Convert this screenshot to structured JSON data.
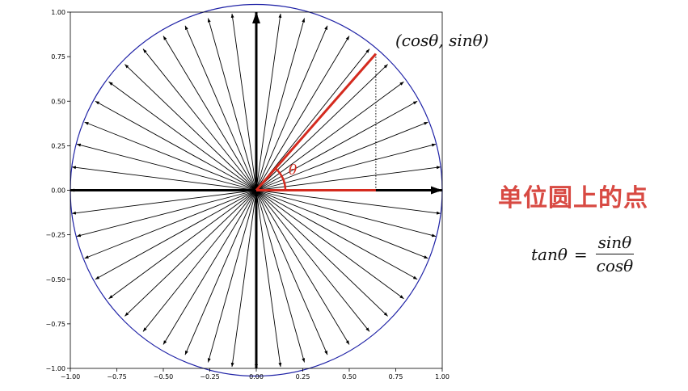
{
  "heading": "单位圆上的点",
  "formula": {
    "lhs": "tanθ",
    "equals": "=",
    "numerator": "sinθ",
    "denominator": "cosθ"
  },
  "colors": {
    "heading": "#d84a43",
    "circle": "#1f22a6",
    "highlight": "#d42a1e",
    "spokes": "#000000"
  },
  "chart_data": {
    "type": "line",
    "title": "",
    "xlabel": "",
    "ylabel": "",
    "xlim": [
      -1.0,
      1.0
    ],
    "ylim": [
      -1.0,
      1.0
    ],
    "xticks": [
      "−1.00",
      "−0.75",
      "−0.50",
      "−0.25",
      "0.00",
      "0.25",
      "0.50",
      "0.75",
      "1.00"
    ],
    "yticks": [
      "1.00",
      "0.75",
      "0.50",
      "0.25",
      "0.00",
      "−0.25",
      "−0.50",
      "−0.75",
      "−1.00"
    ],
    "tick_values": [
      -1.0,
      -0.75,
      -0.5,
      -0.25,
      0.0,
      0.25,
      0.5,
      0.75,
      1.0
    ],
    "grid": false,
    "unit_circle": {
      "center": [
        0,
        0
      ],
      "radius": 1.0
    },
    "spoke_count": 48,
    "spoke_angles_deg": [
      0,
      7.5,
      15,
      22.5,
      30,
      37.5,
      45,
      52.5,
      60,
      67.5,
      75,
      82.5,
      90,
      97.5,
      105,
      112.5,
      120,
      127.5,
      135,
      142.5,
      150,
      157.5,
      165,
      172.5,
      180,
      187.5,
      195,
      202.5,
      210,
      217.5,
      225,
      232.5,
      240,
      247.5,
      255,
      262.5,
      270,
      277.5,
      285,
      292.5,
      300,
      307.5,
      315,
      322.5,
      330,
      337.5,
      345,
      352.5
    ],
    "highlight": {
      "theta_deg": 50,
      "point": [
        0.643,
        0.766
      ],
      "point_label": "(cosθ, sinθ)",
      "angle_label": "θ"
    }
  }
}
